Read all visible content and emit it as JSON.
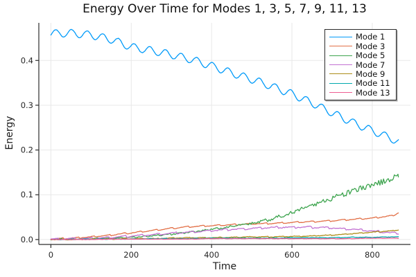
{
  "chart_data": {
    "type": "line",
    "title": "Energy Over Time for Modes 1, 3, 5, 7, 9, 11, 13",
    "xlabel": "Time",
    "ylabel": "Energy",
    "xlim": [
      -30,
      895
    ],
    "ylim": [
      -0.011,
      0.484
    ],
    "xticks": [
      0,
      200,
      400,
      600,
      800
    ],
    "xtick_labels": [
      "0",
      "200",
      "400",
      "600",
      "800"
    ],
    "yticks": [
      0.0,
      0.1,
      0.2,
      0.3,
      0.4
    ],
    "ytick_labels": [
      "0.0",
      "0.1",
      "0.2",
      "0.3",
      "0.4"
    ],
    "grid": true,
    "legend_position": "top-right",
    "t": [
      0,
      50,
      100,
      150,
      200,
      250,
      300,
      350,
      400,
      450,
      500,
      550,
      600,
      650,
      700,
      750,
      800,
      850,
      865
    ],
    "series": [
      {
        "name": "Mode 1",
        "color": "#009af9",
        "values": [
          0.46,
          0.461,
          0.457,
          0.447,
          0.43,
          0.422,
          0.413,
          0.402,
          0.388,
          0.372,
          0.358,
          0.342,
          0.325,
          0.305,
          0.283,
          0.262,
          0.243,
          0.225,
          0.217
        ],
        "ripple": {
          "shape": "sin",
          "amp": 0.0085,
          "period": 39,
          "phase": -0.4
        },
        "noise_abs": 0.0004,
        "noise_rel": 0
      },
      {
        "name": "Mode 3",
        "color": "#e26f46",
        "values": [
          0.001,
          0.003,
          0.006,
          0.01,
          0.015,
          0.02,
          0.025,
          0.029,
          0.031,
          0.033,
          0.035,
          0.036,
          0.038,
          0.04,
          0.042,
          0.045,
          0.048,
          0.053,
          0.06
        ],
        "ripple": {
          "shape": "saw",
          "amp": 0.0016,
          "period": 39,
          "phase": 0.2
        },
        "noise_abs": 0.0005,
        "noise_rel": 0
      },
      {
        "name": "Mode 5",
        "color": "#3da44e",
        "values": [
          0.001,
          0.001,
          0.002,
          0.003,
          0.005,
          0.008,
          0.012,
          0.017,
          0.023,
          0.029,
          0.036,
          0.046,
          0.06,
          0.076,
          0.092,
          0.108,
          0.122,
          0.136,
          0.141
        ],
        "ripple": {
          "shape": "saw",
          "amp": 0.0012,
          "period": 30,
          "phase": 0
        },
        "noise_abs": 0.0006,
        "noise_rel": 0.05
      },
      {
        "name": "Mode 7",
        "color": "#c271d2",
        "values": [
          0.001,
          0.002,
          0.003,
          0.005,
          0.008,
          0.011,
          0.014,
          0.017,
          0.02,
          0.023,
          0.025,
          0.027,
          0.028,
          0.028,
          0.026,
          0.023,
          0.019,
          0.015,
          0.014
        ],
        "ripple": {
          "shape": "saw",
          "amp": 0.0022,
          "period": 42,
          "phase": 0.5
        },
        "noise_abs": 0.0005,
        "noise_rel": 0.02
      },
      {
        "name": "Mode 9",
        "color": "#ac8d18",
        "values": [
          0.0,
          0.0,
          0.001,
          0.001,
          0.002,
          0.002,
          0.003,
          0.004,
          0.004,
          0.005,
          0.006,
          0.006,
          0.007,
          0.008,
          0.01,
          0.013,
          0.016,
          0.02,
          0.022
        ],
        "ripple": {
          "shape": "saw",
          "amp": 0.0008,
          "period": 39,
          "phase": 0.1
        },
        "noise_abs": 0.0005,
        "noise_rel": 0.025
      },
      {
        "name": "Mode 11",
        "color": "#00a9ad",
        "values": [
          0.0,
          0.0,
          0.001,
          0.001,
          0.001,
          0.002,
          0.002,
          0.002,
          0.003,
          0.003,
          0.003,
          0.003,
          0.004,
          0.004,
          0.004,
          0.005,
          0.005,
          0.006,
          0.006
        ],
        "ripple": {
          "shape": "saw",
          "amp": 0.0005,
          "period": 39,
          "phase": 0.6
        },
        "noise_abs": 0.0004,
        "noise_rel": 0
      },
      {
        "name": "Mode 13",
        "color": "#ed5d92",
        "values": [
          0.0,
          0.0,
          0.0,
          0.001,
          0.001,
          0.001,
          0.001,
          0.001,
          0.002,
          0.002,
          0.002,
          0.002,
          0.002,
          0.002,
          0.002,
          0.002,
          0.003,
          0.003,
          0.003
        ],
        "ripple": {
          "shape": "saw",
          "amp": 0.0003,
          "period": 39,
          "phase": 0.9
        },
        "noise_abs": 0.00025,
        "noise_rel": 0
      }
    ],
    "style": {
      "grid_color": "#e8e8e8",
      "spine_color": "#2d2d2d",
      "tick_label_color": "#262626",
      "background": "#ffffff"
    }
  }
}
